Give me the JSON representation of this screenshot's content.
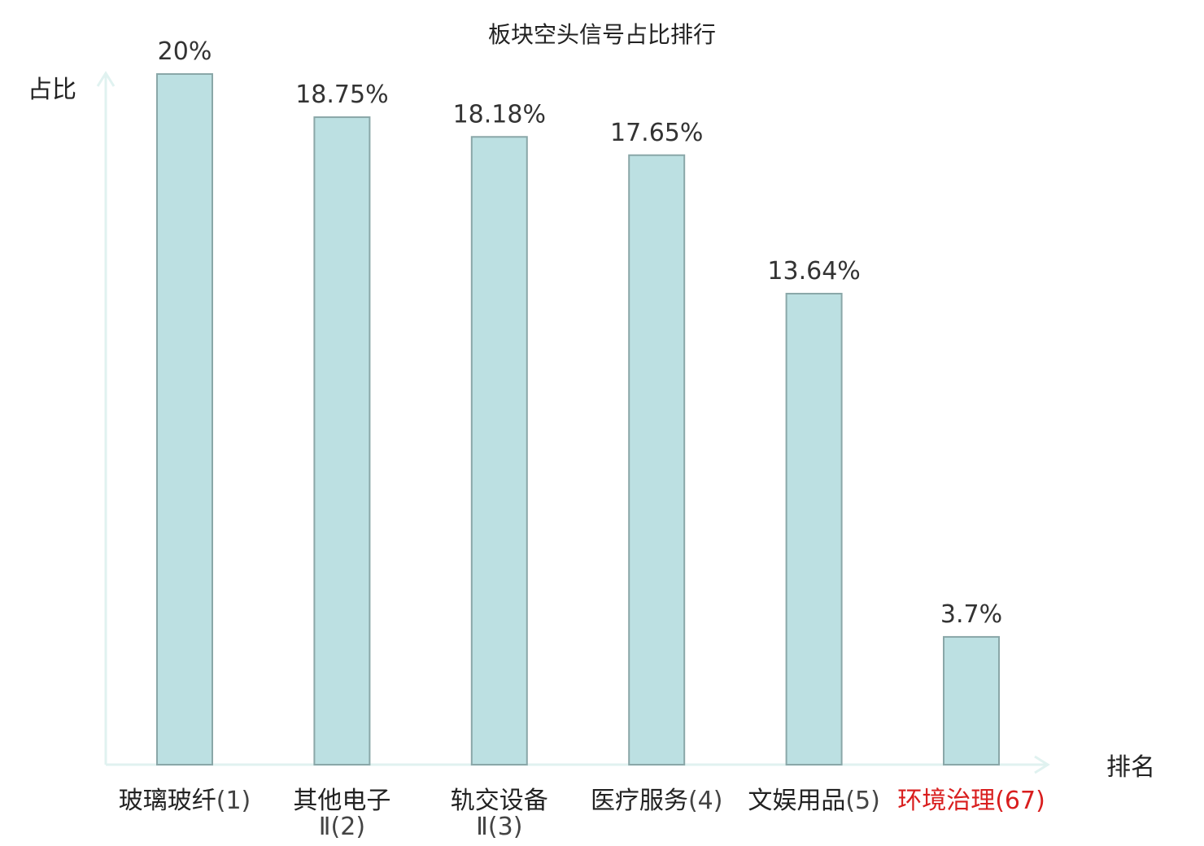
{
  "chart_data": {
    "type": "bar",
    "title": "板块空头信号占比排行",
    "xlabel": "排名",
    "ylabel": "占比",
    "ylim": [
      0,
      20
    ],
    "grid": false,
    "bar_color": "#bce0e2",
    "bar_border_color": "#8aa7a8",
    "axis_color": "#e0f2f0",
    "highlight_color": "#d91e1e",
    "categories": [
      {
        "name": "玻璃玻纤",
        "rank": "(1)",
        "highlight": false
      },
      {
        "name": "其他电子",
        "name_line2": "Ⅱ",
        "rank": "(2)",
        "highlight": false
      },
      {
        "name": "轨交设备",
        "name_line2": "Ⅱ",
        "rank": "(3)",
        "highlight": false
      },
      {
        "name": "医疗服务",
        "rank": "(4)",
        "highlight": false
      },
      {
        "name": "文娱用品",
        "rank": "(5)",
        "highlight": false
      },
      {
        "name": "环境治理",
        "rank": "(67)",
        "highlight": true
      }
    ],
    "values": [
      20,
      18.75,
      18.18,
      17.65,
      13.64,
      3.7
    ],
    "value_labels": [
      "20%",
      "18.75%",
      "18.18%",
      "17.65%",
      "13.64%",
      "3.7%"
    ]
  }
}
